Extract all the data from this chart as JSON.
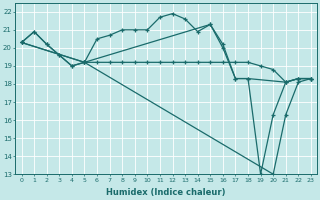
{
  "xlabel": "Humidex (Indice chaleur)",
  "xlim": [
    -0.5,
    23.5
  ],
  "ylim": [
    13,
    22.5
  ],
  "yticks": [
    13,
    14,
    15,
    16,
    17,
    18,
    19,
    20,
    21,
    22
  ],
  "xticks": [
    0,
    1,
    2,
    3,
    4,
    5,
    6,
    7,
    8,
    9,
    10,
    11,
    12,
    13,
    14,
    15,
    16,
    17,
    18,
    19,
    20,
    21,
    22,
    23
  ],
  "bg_color": "#c5e8e8",
  "line_color": "#1a6b6b",
  "grid_color": "#ffffff",
  "series": [
    {
      "x": [
        0,
        1,
        2,
        3,
        4,
        5,
        6,
        7,
        8,
        9,
        10,
        11,
        12,
        13,
        14,
        15,
        16,
        17,
        18,
        21,
        22,
        23
      ],
      "y": [
        20.3,
        20.9,
        20.2,
        19.6,
        19.0,
        19.2,
        20.5,
        20.7,
        21.0,
        21.0,
        21.0,
        21.7,
        21.9,
        21.6,
        20.9,
        21.3,
        20.0,
        18.3,
        18.3,
        18.1,
        18.3,
        18.3
      ]
    },
    {
      "x": [
        0,
        1,
        2,
        3,
        4,
        5,
        6,
        7,
        8,
        9,
        10,
        11,
        12,
        13,
        14,
        15,
        16,
        17,
        18,
        19,
        20,
        21,
        22,
        23
      ],
      "y": [
        20.3,
        20.9,
        20.2,
        19.6,
        19.0,
        19.2,
        19.2,
        19.2,
        19.2,
        19.2,
        19.2,
        19.2,
        19.2,
        19.2,
        19.2,
        19.2,
        19.2,
        19.2,
        19.2,
        19.0,
        18.8,
        18.1,
        18.3,
        18.3
      ]
    },
    {
      "x": [
        0,
        5,
        20,
        21,
        22,
        23
      ],
      "y": [
        20.3,
        19.2,
        13.0,
        16.3,
        18.1,
        18.3
      ]
    },
    {
      "x": [
        0,
        5,
        15,
        16,
        17,
        18,
        19,
        20,
        21,
        22,
        23
      ],
      "y": [
        20.3,
        19.2,
        21.3,
        20.2,
        18.3,
        18.3,
        13.0,
        16.3,
        18.1,
        18.3,
        18.3
      ]
    }
  ]
}
